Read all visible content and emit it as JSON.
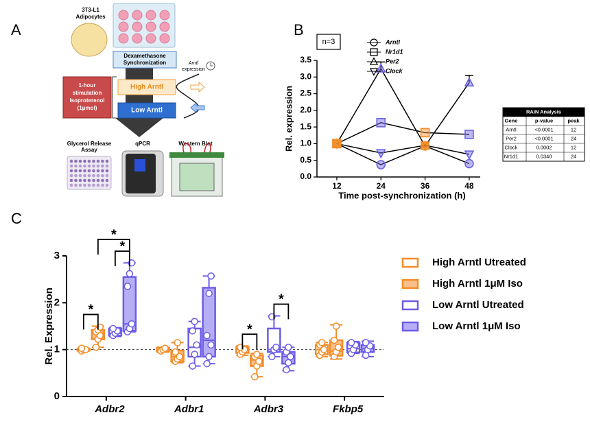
{
  "panels": [
    "A",
    "B",
    "C"
  ],
  "diagram": {
    "cells": [
      "3T3-L1",
      "Adipocytes"
    ],
    "sync": [
      "Dexamethasone",
      "Synchronization"
    ],
    "expression": [
      "Arntl",
      "expression"
    ],
    "stimulation": [
      "1-hour",
      "stimulation",
      "Isoproterenol",
      "(1μmol)"
    ],
    "high": "High Arntl",
    "low": "Low Arntl",
    "assays": [
      [
        "Glycerol Release",
        "Assay"
      ],
      [
        "qPCR"
      ],
      [
        "Western Blot"
      ]
    ]
  },
  "rain_table": {
    "title": "RAIN Analysis",
    "columns": [
      "Gene",
      "p-value",
      "peak"
    ],
    "rows": [
      [
        "Arntl",
        "<0.0001",
        "12"
      ],
      [
        "Per2",
        "<0.0001",
        "24"
      ],
      [
        "Clock",
        "0.0002",
        "12"
      ],
      [
        "Nr1d1",
        "0.0340",
        "24"
      ]
    ]
  },
  "chart_data": [
    {
      "type": "line",
      "annotation": "n=3",
      "xlabel": "Time post-synchronization (h)",
      "ylabel": "Rel. expression",
      "x": [
        12,
        24,
        36,
        48
      ],
      "xlim": [
        6.6,
        51
      ],
      "xticks": [
        12,
        24,
        36,
        48
      ],
      "ylim": [
        0,
        3.5
      ],
      "yticks": [
        {
          "value": 0,
          "label": "0.0"
        },
        0.5,
        {
          "value": 1,
          "label": "1.0"
        },
        1.5,
        {
          "value": 2,
          "label": "2.0"
        },
        2.5,
        {
          "value": 3,
          "label": "3.0"
        },
        3.5
      ],
      "point_colors": [
        "#f28c28",
        "#6b63e0",
        "#f28c28",
        "#6b63e0"
      ],
      "series": [
        {
          "name": "Arntl",
          "marker": "circle",
          "color": "#000000",
          "values": [
            1.0,
            0.37,
            0.93,
            0.4
          ]
        },
        {
          "name": "Nr1d1",
          "marker": "square",
          "color": "#000000",
          "values": [
            1.0,
            1.63,
            1.33,
            1.28
          ]
        },
        {
          "name": "Per2",
          "marker": "triangle-up",
          "color": "#000000",
          "values": [
            1.0,
            3.25,
            0.93,
            2.83
          ],
          "errors": [
            null,
            0.2,
            null,
            0.22
          ]
        },
        {
          "name": "Clock",
          "marker": "triangle-down",
          "color": "#000000",
          "values": [
            1.0,
            0.72,
            0.95,
            0.68
          ]
        }
      ]
    },
    {
      "type": "box",
      "ylabel": "Rel. Expression",
      "categories": [
        "Adbr2",
        "Adbr1",
        "Adbr3",
        "Fkbp5"
      ],
      "ylim": [
        0,
        3
      ],
      "yticks": [
        0,
        1,
        2,
        3
      ],
      "reference_line": 1,
      "series": [
        {
          "name": "High Arntl Utreated",
          "color": "#f28c28",
          "fill": "#ffffff",
          "boxes": [
            {
              "min": 0.97,
              "q1": 0.98,
              "median": 1.0,
              "q3": 1.02,
              "max": 1.03,
              "points": [
                0.97,
                1.0,
                1.0,
                1.03
              ]
            },
            {
              "min": 0.95,
              "q1": 0.96,
              "median": 1.0,
              "q3": 1.04,
              "max": 1.05,
              "points": [
                0.97,
                1.0,
                1.03
              ]
            },
            {
              "min": 0.88,
              "q1": 0.93,
              "median": 1.0,
              "q3": 1.05,
              "max": 1.08,
              "points": [
                0.9,
                0.95,
                1.0,
                1.05
              ]
            },
            {
              "min": 0.85,
              "q1": 0.9,
              "median": 1.0,
              "q3": 1.1,
              "max": 1.15,
              "points": [
                0.88,
                0.95,
                1.0,
                1.1,
                1.15
              ]
            }
          ]
        },
        {
          "name": "High Arntl 1μM Iso",
          "color": "#f28c28",
          "fill": "#f7c08a",
          "boxes": [
            {
              "min": 1.05,
              "q1": 1.22,
              "median": 1.35,
              "q3": 1.42,
              "max": 1.5,
              "points": [
                1.05,
                1.22,
                1.3,
                1.38,
                1.42,
                1.48
              ]
            },
            {
              "min": 0.72,
              "q1": 0.75,
              "median": 0.85,
              "q3": 0.98,
              "max": 1.15,
              "points": [
                0.75,
                0.8,
                0.85,
                0.95,
                1.15
              ]
            },
            {
              "min": 0.42,
              "q1": 0.65,
              "median": 0.78,
              "q3": 0.88,
              "max": 0.92,
              "points": [
                0.42,
                0.65,
                0.75,
                0.85,
                0.9
              ]
            },
            {
              "min": 0.8,
              "q1": 0.87,
              "median": 0.97,
              "q3": 1.2,
              "max": 1.53,
              "points": [
                0.85,
                0.95,
                1.05,
                1.2,
                1.5
              ]
            }
          ]
        },
        {
          "name": "Low Arntl Utreated",
          "color": "#6b5ce7",
          "fill": "#ffffff",
          "boxes": [
            {
              "min": 1.28,
              "q1": 1.3,
              "median": 1.35,
              "q3": 1.45,
              "max": 1.47,
              "points": [
                1.3,
                1.35,
                1.4,
                1.45
              ]
            },
            {
              "min": 0.65,
              "q1": 0.85,
              "median": 1.05,
              "q3": 1.45,
              "max": 1.6,
              "points": [
                0.65,
                0.9,
                1.1,
                1.4,
                1.6
              ]
            },
            {
              "min": 0.85,
              "q1": 0.95,
              "median": 1.0,
              "q3": 1.45,
              "max": 1.72,
              "points": [
                0.85,
                1.0,
                1.05,
                1.7
              ]
            },
            {
              "min": 0.92,
              "q1": 0.94,
              "median": 1.02,
              "q3": 1.15,
              "max": 1.17,
              "points": [
                0.92,
                1.0,
                1.1,
                1.15
              ]
            }
          ]
        },
        {
          "name": "Low Arntl 1μM Iso",
          "color": "#6b5ce7",
          "fill": "#b5aef5",
          "boxes": [
            {
              "min": 1.38,
              "q1": 1.4,
              "median": 1.55,
              "q3": 2.55,
              "max": 2.85,
              "points": [
                1.38,
                1.45,
                1.55,
                2.35,
                2.62,
                2.85
              ]
            },
            {
              "min": 0.7,
              "q1": 0.85,
              "median": 1.2,
              "q3": 2.32,
              "max": 2.57,
              "points": [
                0.7,
                0.85,
                1.1,
                1.3,
                2.2,
                2.57
              ]
            },
            {
              "min": 0.55,
              "q1": 0.7,
              "median": 0.85,
              "q3": 0.95,
              "max": 1.05,
              "points": [
                0.57,
                0.72,
                0.85,
                0.95,
                1.05
              ]
            },
            {
              "min": 0.85,
              "q1": 0.95,
              "median": 1.02,
              "q3": 1.1,
              "max": 1.18,
              "points": [
                0.88,
                1.0,
                1.08,
                1.15
              ]
            }
          ]
        }
      ],
      "annotations": [
        {
          "text": "*",
          "category": 0,
          "series": [
            0,
            1
          ]
        },
        {
          "text": "*",
          "category": 0,
          "series": [
            2,
            3
          ]
        },
        {
          "text": "*",
          "category": 0,
          "series": [
            1,
            3
          ]
        },
        {
          "text": "*",
          "category": 2,
          "series": [
            0,
            1
          ]
        },
        {
          "text": "*",
          "category": 2,
          "series": [
            2,
            3
          ]
        }
      ]
    }
  ]
}
